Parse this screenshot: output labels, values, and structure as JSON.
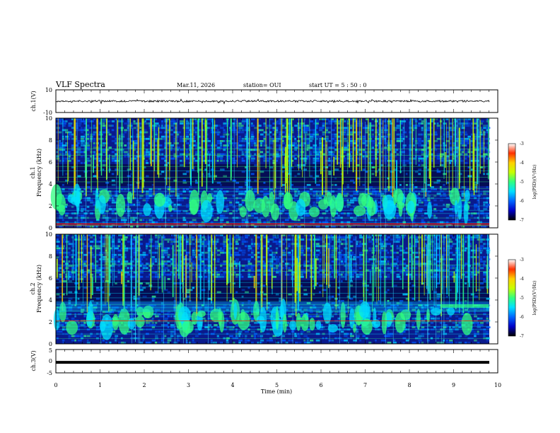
{
  "header": {
    "title": "VLF Spectra",
    "date": "Mar.11, 2026",
    "station": "station= OUI",
    "start": "start  UT  =   5  : 50 : 0"
  },
  "colors": {
    "spectrogram_background": "#0a1a8c",
    "colormap": [
      "#000000",
      "#0000c8",
      "#0066ff",
      "#00e0ff",
      "#30ff80",
      "#c8ff00",
      "#ffd000",
      "#ff3000",
      "#ffffff"
    ]
  },
  "chart_data": [
    {
      "type": "line",
      "id": "ch1-waveform",
      "ylabel": "ch.1(V)",
      "ylim": [
        -10,
        10
      ],
      "yticks": [
        "10",
        "-10"
      ],
      "description_level": 0
    },
    {
      "type": "heatmap",
      "id": "ch1-spectrogram",
      "ylabel_top": "ch.1",
      "ylabel": "Frequency (kHz)",
      "ylim": [
        0,
        10
      ],
      "yticks": [
        "0",
        "2",
        "4",
        "6",
        "8",
        "10"
      ],
      "colorbar": {
        "label": "log(PSD)(V²/Hz)",
        "range": [
          -7,
          -3
        ],
        "ticks": [
          "-3",
          "-4",
          "-5",
          "-6",
          "-7"
        ]
      }
    },
    {
      "type": "heatmap",
      "id": "ch2-spectrogram",
      "ylabel_top": "ch.2",
      "ylabel": "Frequency (kHz)",
      "ylim": [
        0,
        10
      ],
      "yticks": [
        "0",
        "2",
        "4",
        "6",
        "8",
        "10"
      ],
      "colorbar": {
        "label": "log(PSD)(V²/Hz)",
        "range": [
          -7,
          -3
        ],
        "ticks": [
          "-3",
          "-4",
          "-5",
          "-6",
          "-7"
        ]
      }
    },
    {
      "type": "line",
      "id": "ch3-waveform",
      "ylabel": "ch.3(V)",
      "ylim": [
        -5,
        5
      ],
      "yticks": [
        "5",
        "0",
        "-5"
      ],
      "level": -0.5
    }
  ],
  "xaxis": {
    "label": "Time (min)",
    "range": [
      0,
      10
    ],
    "ticks": [
      "0",
      "1",
      "2",
      "3",
      "4",
      "5",
      "6",
      "7",
      "8",
      "9",
      "10"
    ]
  }
}
